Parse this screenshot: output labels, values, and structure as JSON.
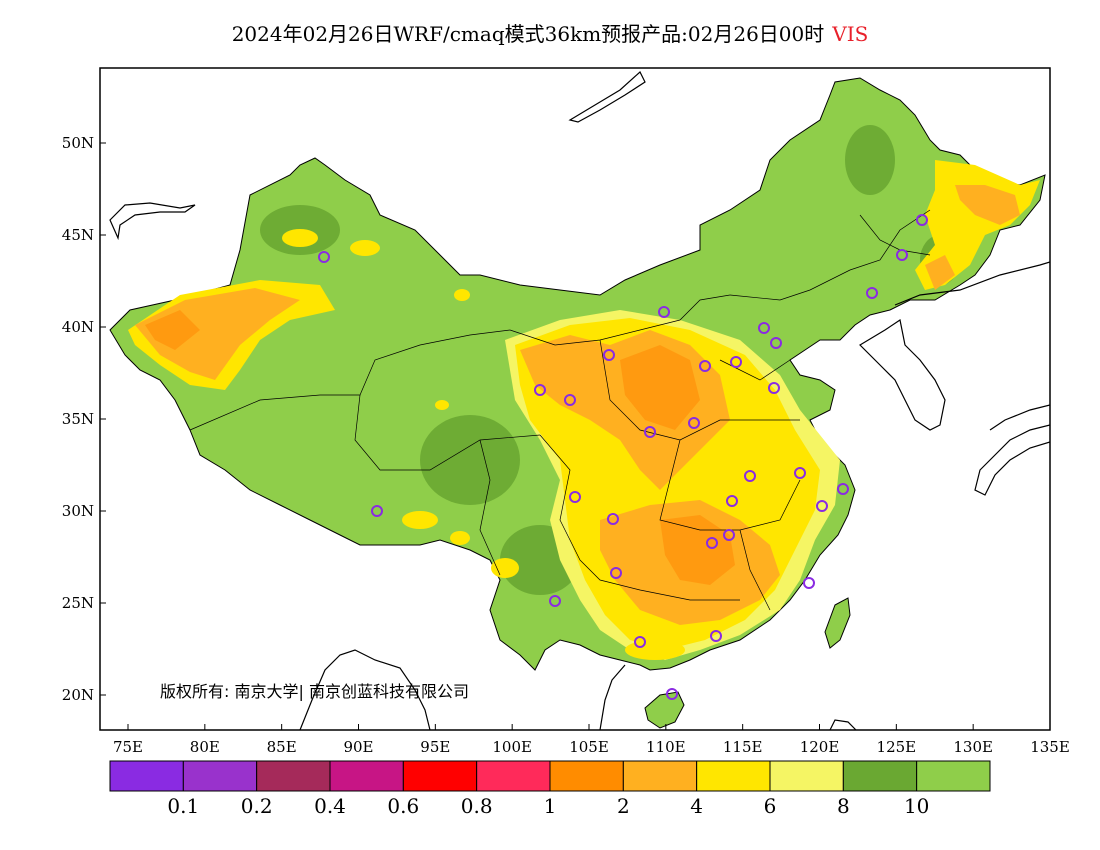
{
  "title": {
    "text": "2024年02月26日WRF/cmaq模式36km预报产品:02月26日00时",
    "variable": "VIS"
  },
  "axes": {
    "lon_ticks": [
      "75E",
      "80E",
      "85E",
      "90E",
      "95E",
      "100E",
      "105E",
      "110E",
      "115E",
      "120E",
      "125E",
      "130E",
      "135E"
    ],
    "lat_ticks": [
      "20N",
      "25N",
      "30N",
      "35N",
      "40N",
      "45N",
      "50N"
    ]
  },
  "copyright": "版权所有: 南京大学| 南京创蓝科技有限公司",
  "colorbar": {
    "colors": [
      "#8a2be2",
      "#9932cc",
      "#a52a5a",
      "#c71585",
      "#ff0000",
      "#ff2a5a",
      "#ff8c00",
      "#ffb020",
      "#ffe600",
      "#f5f564",
      "#6aa832",
      "#8fce4a"
    ],
    "labels": [
      "0.1",
      "0.2",
      "0.4",
      "0.6",
      "0.8",
      "1",
      "2",
      "4",
      "6",
      "8",
      "10"
    ]
  },
  "colors": {
    "land_background": "#8fce4a",
    "dark_green": "#6aa832",
    "light_yellow": "#f5f564",
    "yellow": "#ffe600",
    "light_orange": "#ffb020",
    "orange": "#ff8c00",
    "station_marker": "#8a2be2",
    "title_variable": "#e8202a"
  }
}
